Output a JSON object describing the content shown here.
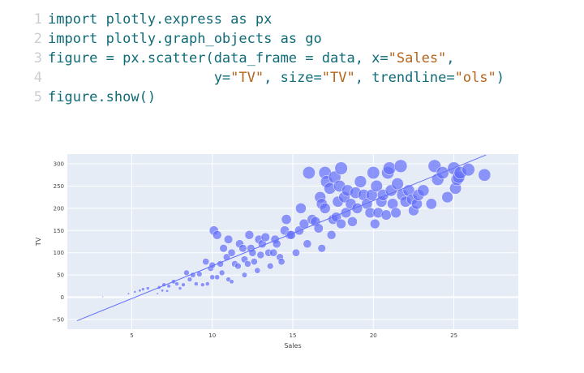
{
  "code": {
    "lines": [
      {
        "num": "1",
        "tokens": [
          {
            "t": "import plotly.express as px",
            "k": "code"
          }
        ]
      },
      {
        "num": "2",
        "tokens": [
          {
            "t": "import plotly.graph_objects as go",
            "k": "code"
          }
        ]
      },
      {
        "num": "3",
        "tokens": [
          {
            "t": "figure = px.scatter(data_frame = data, x=",
            "k": "code"
          },
          {
            "t": "\"Sales\"",
            "k": "str"
          },
          {
            "t": ",",
            "k": "code"
          }
        ]
      },
      {
        "num": "4",
        "tokens": [
          {
            "t": "                    y=",
            "k": "code"
          },
          {
            "t": "\"TV\"",
            "k": "str"
          },
          {
            "t": ", size=",
            "k": "code"
          },
          {
            "t": "\"TV\"",
            "k": "str"
          },
          {
            "t": ", trendline=",
            "k": "code"
          },
          {
            "t": "\"ols\"",
            "k": "str"
          },
          {
            "t": ")",
            "k": "code"
          }
        ]
      },
      {
        "num": "5",
        "tokens": [
          {
            "t": "figure.show()",
            "k": "code"
          }
        ]
      }
    ]
  },
  "colors": {
    "plot_bg": "#e5ecf6",
    "marker": "#636efa",
    "code": "#0f6b78",
    "string": "#b5651d",
    "line_number": "#c9ced3"
  },
  "chart_data": {
    "type": "scatter",
    "xlabel": "Sales",
    "ylabel": "TV",
    "xlim": [
      1,
      29
    ],
    "ylim": [
      -72,
      322
    ],
    "xticks": [
      5,
      10,
      15,
      20,
      25
    ],
    "yticks": [
      -50,
      0,
      50,
      100,
      150,
      200,
      250,
      300
    ],
    "grid": true,
    "legend": "none",
    "trendline": {
      "x": [
        1.6,
        27.0
      ],
      "y": [
        -53,
        320
      ]
    },
    "points": [
      [
        3.2,
        1
      ],
      [
        4.8,
        8
      ],
      [
        5.2,
        12
      ],
      [
        5.5,
        15
      ],
      [
        5.7,
        18
      ],
      [
        6.0,
        20
      ],
      [
        6.6,
        8
      ],
      [
        6.7,
        22
      ],
      [
        6.9,
        15
      ],
      [
        7.0,
        28
      ],
      [
        7.2,
        14
      ],
      [
        7.3,
        25
      ],
      [
        7.6,
        35
      ],
      [
        7.8,
        30
      ],
      [
        8.0,
        20
      ],
      [
        8.2,
        28
      ],
      [
        8.4,
        55
      ],
      [
        8.6,
        40
      ],
      [
        8.8,
        50
      ],
      [
        9.0,
        30
      ],
      [
        9.2,
        52
      ],
      [
        9.4,
        28
      ],
      [
        9.6,
        80
      ],
      [
        9.7,
        30
      ],
      [
        9.9,
        65
      ],
      [
        10.0,
        72
      ],
      [
        10.0,
        45
      ],
      [
        10.1,
        150
      ],
      [
        10.3,
        140
      ],
      [
        10.3,
        45
      ],
      [
        10.5,
        75
      ],
      [
        10.6,
        55
      ],
      [
        10.7,
        110
      ],
      [
        10.9,
        90
      ],
      [
        11.0,
        130
      ],
      [
        11.0,
        40
      ],
      [
        11.2,
        35
      ],
      [
        11.2,
        100
      ],
      [
        11.4,
        75
      ],
      [
        11.6,
        70
      ],
      [
        11.7,
        120
      ],
      [
        11.9,
        110
      ],
      [
        12.0,
        85
      ],
      [
        12.0,
        50
      ],
      [
        12.2,
        75
      ],
      [
        12.3,
        140
      ],
      [
        12.4,
        110
      ],
      [
        12.5,
        100
      ],
      [
        12.6,
        80
      ],
      [
        12.8,
        60
      ],
      [
        12.9,
        130
      ],
      [
        13.0,
        95
      ],
      [
        13.1,
        120
      ],
      [
        13.3,
        135
      ],
      [
        13.5,
        100
      ],
      [
        13.6,
        70
      ],
      [
        13.8,
        100
      ],
      [
        13.9,
        130
      ],
      [
        14.0,
        120
      ],
      [
        14.2,
        90
      ],
      [
        14.3,
        80
      ],
      [
        14.5,
        150
      ],
      [
        14.6,
        175
      ],
      [
        14.8,
        140
      ],
      [
        14.9,
        140
      ],
      [
        15.2,
        100
      ],
      [
        15.4,
        150
      ],
      [
        15.5,
        200
      ],
      [
        15.7,
        165
      ],
      [
        15.9,
        120
      ],
      [
        16.0,
        280
      ],
      [
        16.2,
        175
      ],
      [
        16.4,
        170
      ],
      [
        16.6,
        155
      ],
      [
        16.7,
        225
      ],
      [
        16.8,
        210
      ],
      [
        16.8,
        110
      ],
      [
        17.0,
        200
      ],
      [
        17.0,
        280
      ],
      [
        17.1,
        260
      ],
      [
        17.3,
        245
      ],
      [
        17.4,
        140
      ],
      [
        17.5,
        175
      ],
      [
        17.6,
        270
      ],
      [
        17.7,
        180
      ],
      [
        17.8,
        215
      ],
      [
        17.9,
        250
      ],
      [
        18.0,
        290
      ],
      [
        18.0,
        165
      ],
      [
        18.2,
        225
      ],
      [
        18.3,
        190
      ],
      [
        18.4,
        240
      ],
      [
        18.6,
        210
      ],
      [
        18.7,
        170
      ],
      [
        18.9,
        235
      ],
      [
        19.0,
        200
      ],
      [
        19.2,
        260
      ],
      [
        19.4,
        230
      ],
      [
        19.6,
        210
      ],
      [
        19.8,
        190
      ],
      [
        19.9,
        230
      ],
      [
        20.0,
        280
      ],
      [
        20.1,
        165
      ],
      [
        20.2,
        250
      ],
      [
        20.3,
        190
      ],
      [
        20.5,
        215
      ],
      [
        20.6,
        230
      ],
      [
        20.8,
        185
      ],
      [
        20.9,
        280
      ],
      [
        21.0,
        290
      ],
      [
        21.1,
        240
      ],
      [
        21.2,
        210
      ],
      [
        21.4,
        190
      ],
      [
        21.5,
        255
      ],
      [
        21.7,
        295
      ],
      [
        21.8,
        230
      ],
      [
        22.0,
        215
      ],
      [
        22.2,
        240
      ],
      [
        22.4,
        220
      ],
      [
        22.5,
        195
      ],
      [
        22.7,
        210
      ],
      [
        22.8,
        230
      ],
      [
        23.1,
        240
      ],
      [
        23.6,
        210
      ],
      [
        23.8,
        295
      ],
      [
        24.0,
        265
      ],
      [
        24.3,
        280
      ],
      [
        24.6,
        225
      ],
      [
        25.0,
        290
      ],
      [
        25.1,
        245
      ],
      [
        25.2,
        265
      ],
      [
        25.3,
        270
      ],
      [
        25.4,
        280
      ],
      [
        25.9,
        287
      ],
      [
        26.9,
        275
      ]
    ]
  }
}
